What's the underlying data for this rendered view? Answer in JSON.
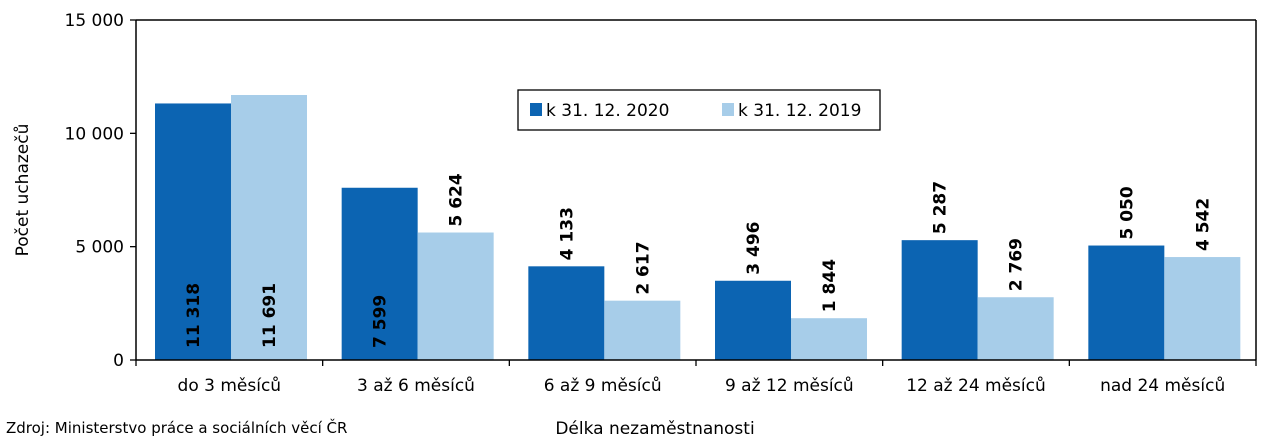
{
  "chart_data": {
    "type": "bar",
    "xlabel": "Délka nezaměstnanosti",
    "ylabel": "Počet uchazečů",
    "ylim": [
      0,
      15000
    ],
    "yticks": [
      0,
      5000,
      10000,
      15000
    ],
    "ytick_labels": [
      "0",
      "5 000",
      "10 000",
      "15 000"
    ],
    "grid": false,
    "legend_position": "top-center",
    "categories": [
      "do 3 měsíců",
      "3 až 6 měsíců",
      "6 až 9 měsíců",
      "9 až 12 měsíců",
      "12 až 24 měsíců",
      "nad 24 měsíců"
    ],
    "series": [
      {
        "name": "k 31. 12. 2020",
        "color": "#0c64b2",
        "values": [
          11318,
          7599,
          4133,
          3496,
          5287,
          5050
        ],
        "labels": [
          "11 318",
          "7 599",
          "4 133",
          "3 496",
          "5 287",
          "5 050"
        ]
      },
      {
        "name": "k 31. 12. 2019",
        "color": "#a7cde9",
        "values": [
          11691,
          5624,
          2617,
          1844,
          2769,
          4542
        ],
        "labels": [
          "11 691",
          "5 624",
          "2 617",
          "1 844",
          "2 769",
          "4 542"
        ]
      }
    ]
  },
  "source": "Zdroj: Ministerstvo práce a sociálních věcí ČR"
}
